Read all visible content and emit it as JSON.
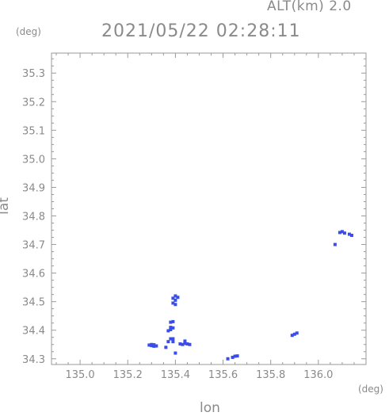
{
  "header": {
    "alt_label": "ALT(km) 2.0",
    "datetime": "2021/05/22 02:28:11"
  },
  "chart_data": {
    "type": "scatter",
    "xlabel": "lon",
    "ylabel": "lat",
    "x_unit": "(deg)",
    "y_unit": "(deg)",
    "xlim": [
      134.88,
      136.2
    ],
    "ylim": [
      34.28,
      35.37
    ],
    "x_ticks": [
      "135.0",
      "135.2",
      "135.4",
      "135.6",
      "135.8",
      "136.0"
    ],
    "x_tick_values": [
      135.0,
      135.2,
      135.4,
      135.6,
      135.8,
      136.0
    ],
    "y_ticks": [
      "34.3",
      "34.4",
      "34.5",
      "34.6",
      "34.7",
      "34.8",
      "34.9",
      "35.0",
      "35.1",
      "35.2",
      "35.3"
    ],
    "y_tick_values": [
      34.3,
      34.4,
      34.5,
      34.6,
      34.7,
      34.8,
      34.9,
      35.0,
      35.1,
      35.2,
      35.3
    ],
    "marker_color": "#3b4de8",
    "points": [
      {
        "lon": 135.29,
        "lat": 34.348
      },
      {
        "lon": 135.3,
        "lat": 34.346
      },
      {
        "lon": 135.31,
        "lat": 34.344
      },
      {
        "lon": 135.3,
        "lat": 34.35
      },
      {
        "lon": 135.32,
        "lat": 34.345
      },
      {
        "lon": 135.31,
        "lat": 34.349
      },
      {
        "lon": 135.36,
        "lat": 34.34
      },
      {
        "lon": 135.37,
        "lat": 34.36
      },
      {
        "lon": 135.38,
        "lat": 34.37
      },
      {
        "lon": 135.37,
        "lat": 34.398
      },
      {
        "lon": 135.38,
        "lat": 34.402
      },
      {
        "lon": 135.38,
        "lat": 34.41
      },
      {
        "lon": 135.39,
        "lat": 34.408
      },
      {
        "lon": 135.38,
        "lat": 34.428
      },
      {
        "lon": 135.39,
        "lat": 34.43
      },
      {
        "lon": 135.39,
        "lat": 34.37
      },
      {
        "lon": 135.4,
        "lat": 34.32
      },
      {
        "lon": 135.39,
        "lat": 34.36
      },
      {
        "lon": 135.42,
        "lat": 34.352
      },
      {
        "lon": 135.43,
        "lat": 34.35
      },
      {
        "lon": 135.44,
        "lat": 34.354
      },
      {
        "lon": 135.45,
        "lat": 34.352
      },
      {
        "lon": 135.46,
        "lat": 34.35
      },
      {
        "lon": 135.44,
        "lat": 34.362
      },
      {
        "lon": 135.39,
        "lat": 34.495
      },
      {
        "lon": 135.4,
        "lat": 34.505
      },
      {
        "lon": 135.39,
        "lat": 34.512
      },
      {
        "lon": 135.4,
        "lat": 34.52
      },
      {
        "lon": 135.41,
        "lat": 34.515
      },
      {
        "lon": 135.4,
        "lat": 34.49
      },
      {
        "lon": 135.64,
        "lat": 34.305
      },
      {
        "lon": 135.65,
        "lat": 34.309
      },
      {
        "lon": 135.66,
        "lat": 34.31
      },
      {
        "lon": 135.62,
        "lat": 34.3
      },
      {
        "lon": 135.89,
        "lat": 34.382
      },
      {
        "lon": 135.9,
        "lat": 34.386
      },
      {
        "lon": 135.91,
        "lat": 34.39
      },
      {
        "lon": 136.09,
        "lat": 34.742
      },
      {
        "lon": 136.1,
        "lat": 34.745
      },
      {
        "lon": 136.11,
        "lat": 34.74
      },
      {
        "lon": 136.13,
        "lat": 34.736
      },
      {
        "lon": 136.14,
        "lat": 34.732
      },
      {
        "lon": 136.07,
        "lat": 34.7
      }
    ]
  }
}
